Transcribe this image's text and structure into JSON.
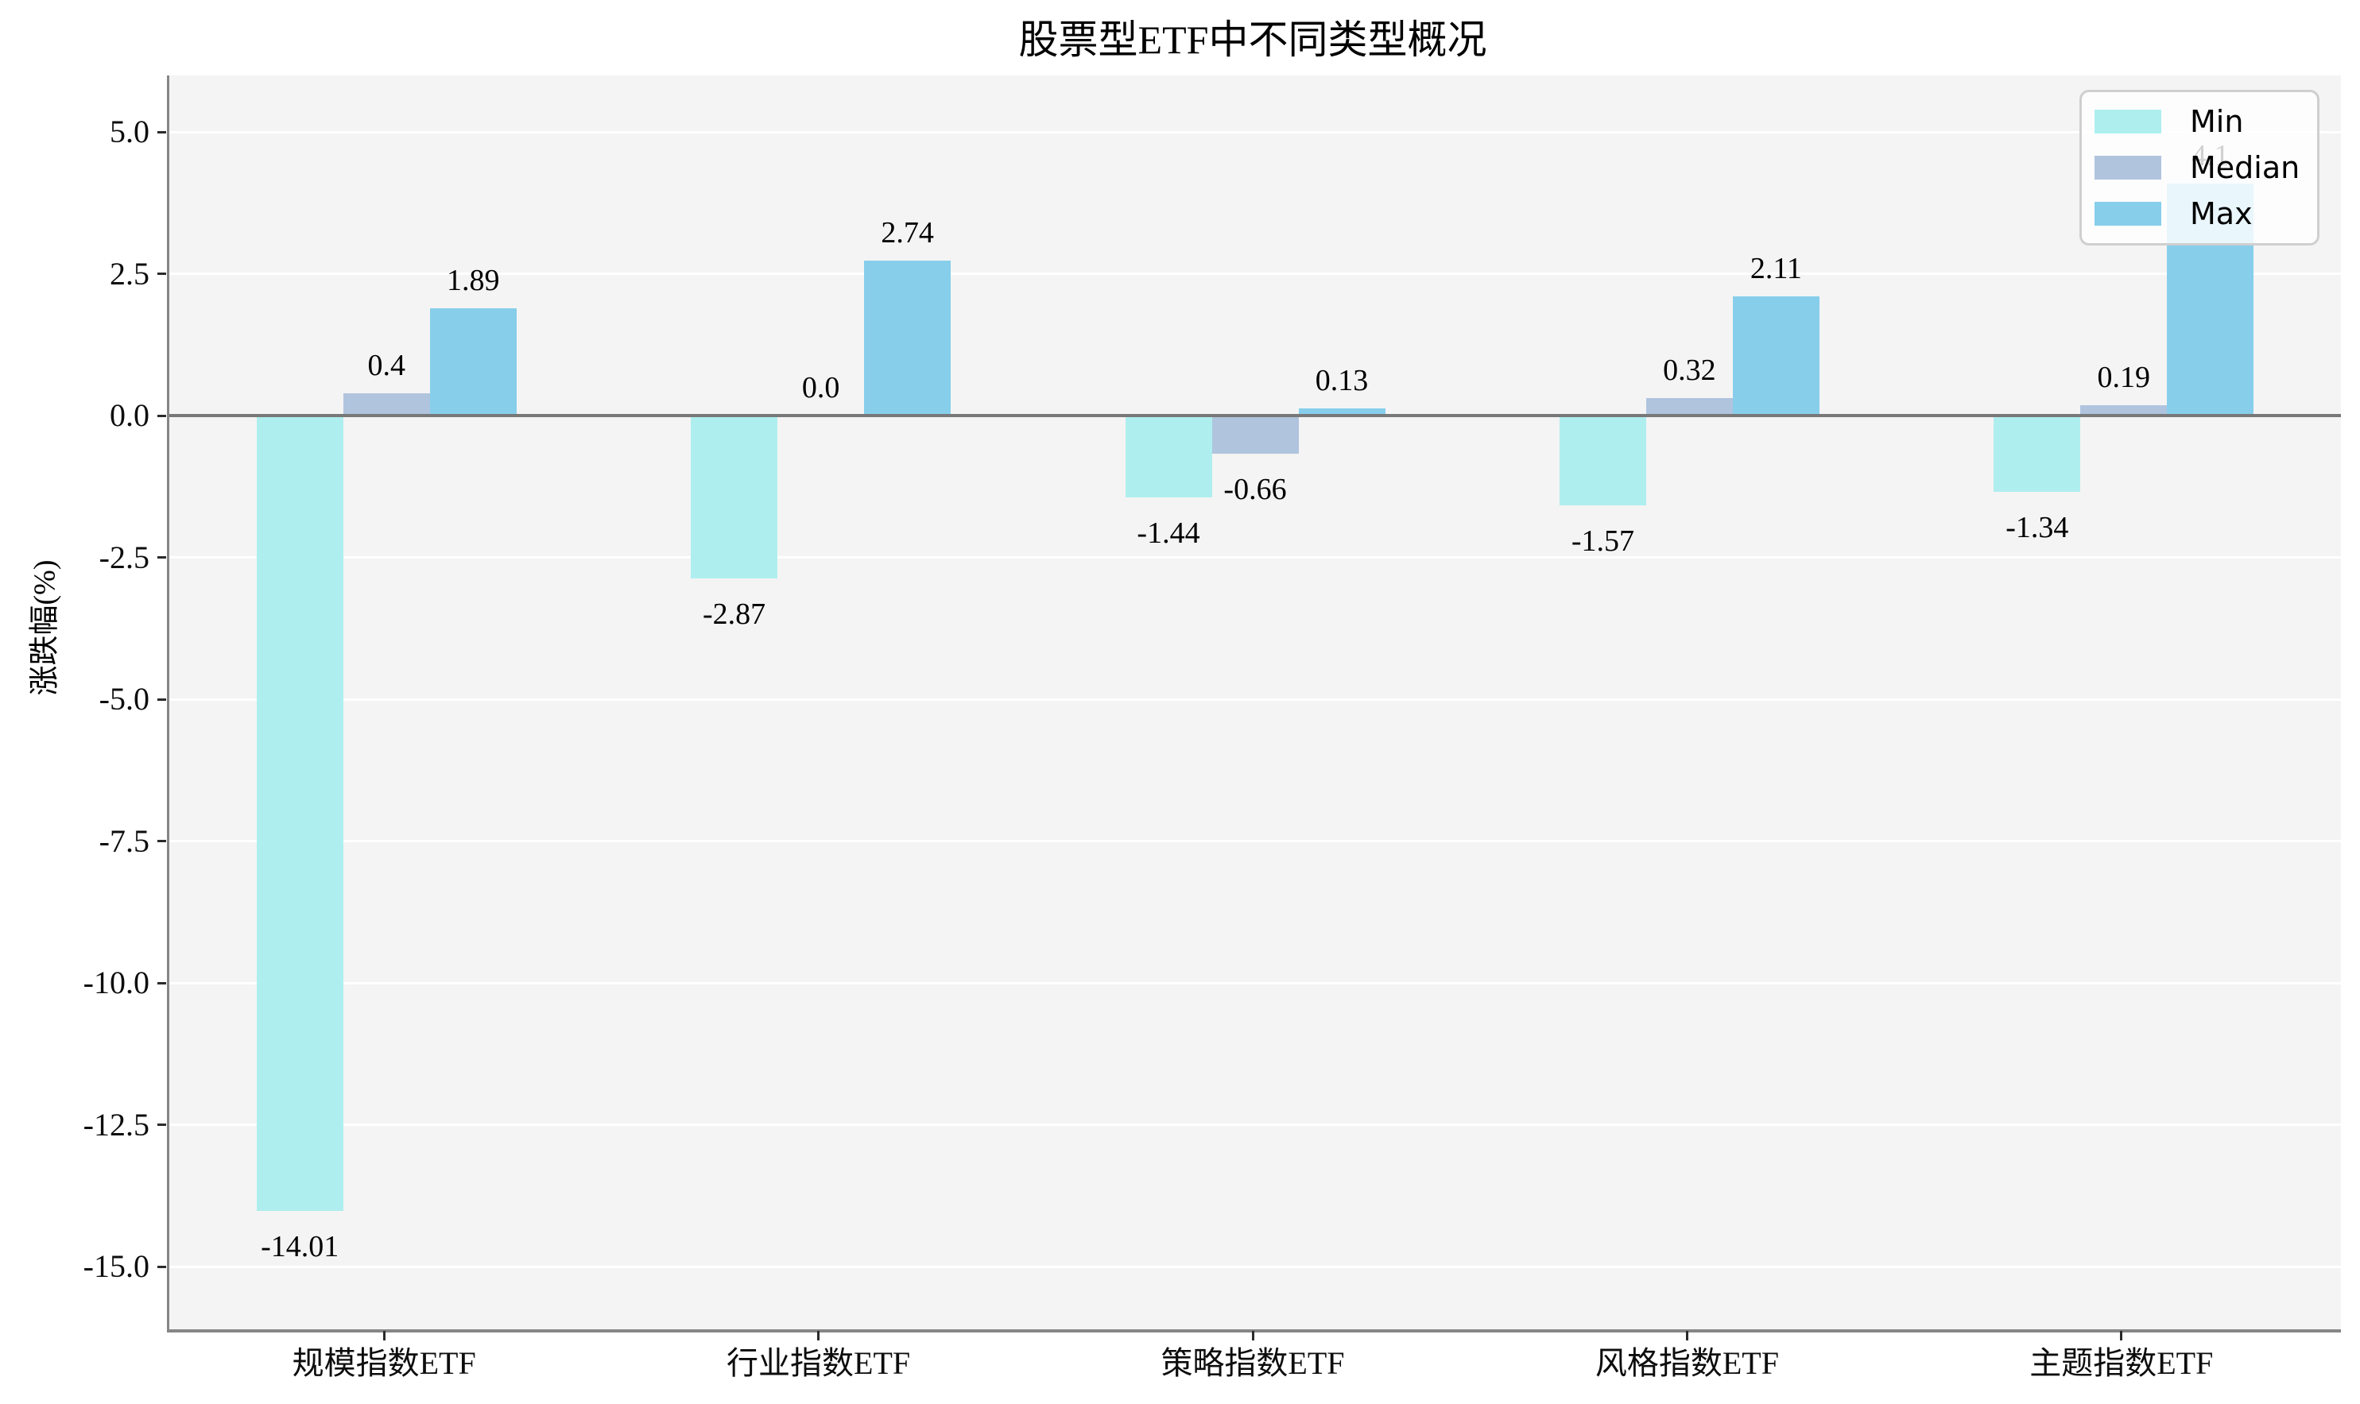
{
  "chart_data": {
    "type": "bar",
    "title": "股票型ETF中不同类型概况",
    "ylabel": "涨跌幅(%)",
    "xlabel": "",
    "categories": [
      "规模指数ETF",
      "行业指数ETF",
      "策略指数ETF",
      "风格指数ETF",
      "主题指数ETF"
    ],
    "series": [
      {
        "name": "Min",
        "color": "#afeeee",
        "values": [
          -14.01,
          -2.87,
          -1.44,
          -1.57,
          -1.34
        ],
        "labels": [
          "-14.01",
          "-2.87",
          "-1.44",
          "-1.57",
          "-1.34"
        ]
      },
      {
        "name": "Median",
        "color": "#b0c4de",
        "values": [
          0.4,
          0.0,
          -0.66,
          0.32,
          0.19
        ],
        "labels": [
          "0.4",
          "0.0",
          "-0.66",
          "0.32",
          "0.19"
        ]
      },
      {
        "name": "Max",
        "color": "#87ceeb",
        "values": [
          1.89,
          2.74,
          0.13,
          2.11,
          4.1
        ],
        "labels": [
          "1.89",
          "2.74",
          "0.13",
          "2.11",
          "4.1"
        ]
      }
    ],
    "yticks": [
      5.0,
      2.5,
      0.0,
      -2.5,
      -5.0,
      -7.5,
      -10.0,
      -12.5,
      -15.0
    ],
    "ytick_labels": [
      "5.0",
      "2.5",
      "0.0",
      "-2.5",
      "-5.0",
      "-7.5",
      "-10.0",
      "-12.5",
      "-15.0"
    ],
    "ylim": [
      -16.1,
      6.0
    ],
    "grid": true,
    "grid_color": "#ffffff",
    "plot_background": "#f4f4f4",
    "zero_line": true,
    "zero_line_color": "#787878",
    "legend_position": "upper right",
    "legend_entries": [
      "Min",
      "Median",
      "Max"
    ]
  }
}
